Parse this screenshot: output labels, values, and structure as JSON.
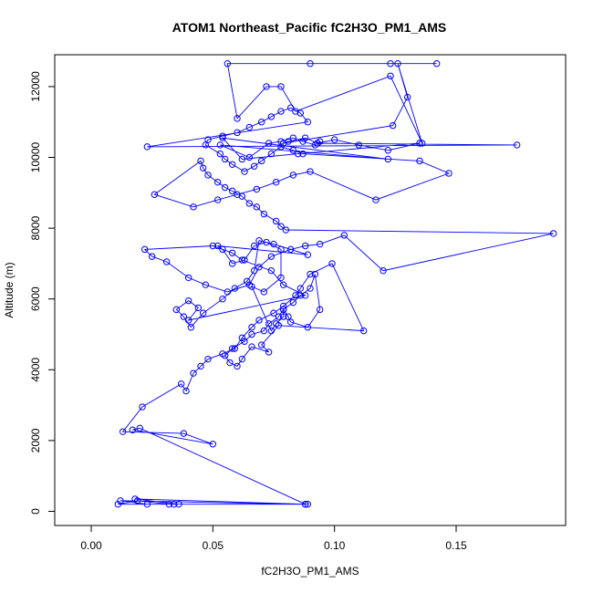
{
  "chart_data": {
    "type": "line",
    "title": "ATOM1 Northeast_Pacific fC2H3O_PM1_AMS",
    "xlabel": "fC2H3O_PM1_AMS",
    "ylabel": "Altitude (m)",
    "xlim": [
      -0.015,
      0.195
    ],
    "ylim": [
      -400,
      12900
    ],
    "x_ticks": [
      0.0,
      0.05,
      0.1,
      0.15
    ],
    "x_tick_labels": [
      "0.00",
      "0.05",
      "0.10",
      "0.15"
    ],
    "y_ticks": [
      0,
      2000,
      4000,
      6000,
      8000,
      10000,
      12000
    ],
    "y_tick_labels": [
      "0",
      "2000",
      "4000",
      "6000",
      "8000",
      "10000",
      "12000"
    ],
    "grid": false,
    "markers": "open-circle",
    "series_color": "#0000ff",
    "series": [
      {
        "x": [
          0.089,
          0.034,
          0.032,
          0.019,
          0.011,
          0.088,
          0.018,
          0.036,
          0.023,
          0.012,
          0.088,
          0.02,
          0.017,
          0.05,
          0.038,
          0.013,
          0.021,
          0.037,
          0.039,
          0.042,
          0.045,
          0.048,
          0.054,
          0.059,
          0.062,
          0.066,
          0.069,
          0.075,
          0.079,
          0.084,
          0.086,
          0.09,
          0.099,
          0.112,
          0.077,
          0.07,
          0.073,
          0.066,
          0.062,
          0.06,
          0.057,
          0.055,
          0.058,
          0.063,
          0.066,
          0.071,
          0.073,
          0.077,
          0.079,
          0.083,
          0.086,
          0.09,
          0.092,
          0.094,
          0.089,
          0.082,
          0.081,
          0.079,
          0.079,
          0.076,
          0.074,
          0.066,
          0.071,
          0.078,
          0.078,
          0.072,
          0.067,
          0.063,
          0.058,
          0.054,
          0.052,
          0.089,
          0.075,
          0.069,
          0.067,
          0.064,
          0.059,
          0.054,
          0.046,
          0.041,
          0.038,
          0.035,
          0.04,
          0.044,
          0.04,
          0.088,
          0.079,
          0.074,
          0.062,
          0.058,
          0.05,
          0.022,
          0.025,
          0.031,
          0.04,
          0.047,
          0.056,
          0.065,
          0.069,
          0.074,
          0.082,
          0.088,
          0.094,
          0.104,
          0.12,
          0.19,
          0.08,
          0.078,
          0.076,
          0.071,
          0.068,
          0.065,
          0.062,
          0.058,
          0.055,
          0.052,
          0.048,
          0.046,
          0.045,
          0.026,
          0.042,
          0.052,
          0.06,
          0.068,
          0.076,
          0.083,
          0.09,
          0.117,
          0.147,
          0.135,
          0.087,
          0.083,
          0.078,
          0.074,
          0.07,
          0.067,
          0.063,
          0.058,
          0.055,
          0.053,
          0.047,
          0.048,
          0.054,
          0.06,
          0.065,
          0.07,
          0.074,
          0.078,
          0.082,
          0.086,
          0.089,
          0.023,
          0.175,
          0.093,
          0.1,
          0.11,
          0.122,
          0.135,
          0.085,
          0.062,
          0.054,
          0.122,
          0.053,
          0.065,
          0.073,
          0.078,
          0.083,
          0.087,
          0.092,
          0.094,
          0.093,
          0.088,
          0.081,
          0.079,
          0.124,
          0.13,
          0.126,
          0.136,
          0.123,
          0.084,
          0.078,
          0.072,
          0.06,
          0.056,
          0.09,
          0.123,
          0.142
        ],
        "y": [
          200,
          200,
          200,
          300,
          200,
          200,
          350,
          200,
          200,
          300,
          200,
          2350,
          2300,
          1900,
          2200,
          2250,
          2950,
          3600,
          3400,
          3900,
          4100,
          4300,
          4450,
          4600,
          4900,
          5200,
          5400,
          5600,
          5800,
          6100,
          6300,
          6700,
          7000,
          5100,
          5250,
          4700,
          4500,
          4650,
          4300,
          4100,
          4200,
          4400,
          4600,
          4800,
          5000,
          5100,
          5300,
          5500,
          5700,
          5900,
          6100,
          6300,
          6700,
          5700,
          5200,
          5350,
          5500,
          5700,
          5500,
          5300,
          5100,
          6350,
          6200,
          6600,
          7400,
          7600,
          7500,
          7100,
          7000,
          7400,
          7500,
          7250,
          7550,
          7650,
          6800,
          6500,
          6300,
          6000,
          5600,
          5200,
          5500,
          5700,
          5950,
          5750,
          5400,
          6100,
          6400,
          6800,
          7100,
          7300,
          7500,
          7400,
          7200,
          7050,
          6600,
          6400,
          6200,
          6400,
          6900,
          7200,
          7400,
          7500,
          7550,
          7800,
          6800,
          7850,
          7950,
          8050,
          8200,
          8400,
          8600,
          8700,
          8900,
          9050,
          9150,
          9300,
          9500,
          9700,
          9900,
          8950,
          8600,
          8800,
          8950,
          9100,
          9300,
          9500,
          9600,
          8800,
          9550,
          9900,
          10100,
          10200,
          10300,
          10100,
          9900,
          9750,
          9600,
          9800,
          9950,
          10100,
          10350,
          10500,
          10600,
          10700,
          10850,
          11000,
          11150,
          11300,
          11400,
          11250,
          11000,
          10300,
          10350,
          10400,
          10500,
          10350,
          10200,
          10400,
          10100,
          9950,
          10550,
          9950,
          10350,
          10000,
          10400,
          10450,
          10550,
          10450,
          10350,
          10450,
          10400,
          10550,
          10450,
          10400,
          10900,
          11700,
          12650,
          10400,
          12300,
          11300,
          12000,
          12000,
          11100,
          12650,
          12650,
          12650,
          12650
        ]
      }
    ]
  }
}
